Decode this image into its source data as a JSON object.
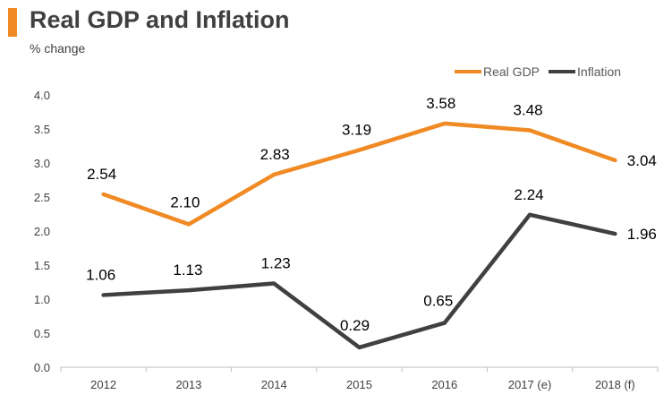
{
  "header": {
    "title": "Real GDP and Inflation",
    "subtitle": "% change"
  },
  "colors": {
    "accent": "#f08a24",
    "real_gdp": "#f08a24",
    "inflation": "#404040"
  },
  "chart_data": {
    "type": "line",
    "title": "Real GDP and Inflation",
    "ylabel": "% change",
    "xlabel": "",
    "categories": [
      "2012",
      "2013",
      "2014",
      "2015",
      "2016",
      "2017 (e)",
      "2018 (f)"
    ],
    "ylim": [
      0,
      4
    ],
    "yticks": [
      "0.0",
      "0.5",
      "1.0",
      "1.5",
      "2.0",
      "2.5",
      "3.0",
      "3.5",
      "4.0"
    ],
    "grid": false,
    "legend_position": "top-right",
    "series": [
      {
        "name": "Real GDP",
        "values": [
          2.54,
          2.1,
          2.83,
          3.19,
          3.58,
          3.48,
          3.04
        ],
        "labels": [
          "2.54",
          "2.10",
          "2.83",
          "3.19",
          "3.58",
          "3.48",
          "3.04"
        ]
      },
      {
        "name": "Inflation",
        "values": [
          1.06,
          1.13,
          1.23,
          0.29,
          0.65,
          2.24,
          1.96
        ],
        "labels": [
          "1.06",
          "1.13",
          "1.23",
          "0.29",
          "0.65",
          "2.24",
          "1.96"
        ]
      }
    ]
  }
}
